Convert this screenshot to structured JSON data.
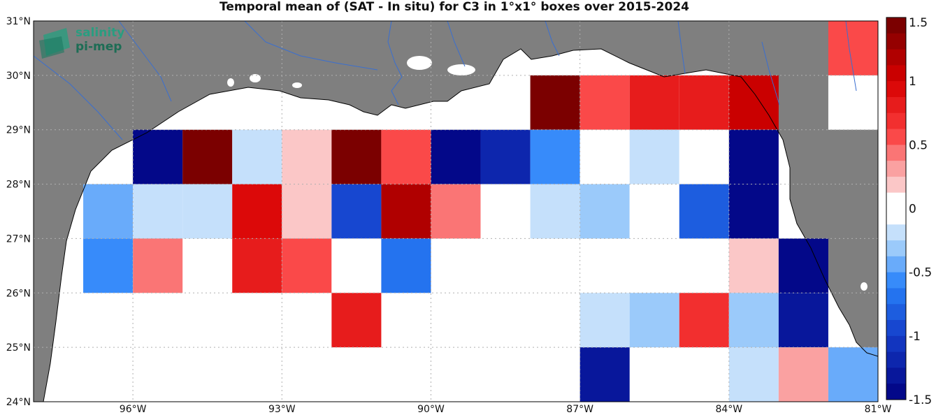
{
  "title": "Temporal mean of (SAT - In situ) for C3 in 1°x1° boxes over 2015-2024",
  "logo": {
    "line1": "salinity",
    "line2": "pi-mep",
    "color": "#2a9d80"
  },
  "colors": {
    "land": "#7f7f7f",
    "coast": "#000000",
    "river": "#3a6fd0"
  },
  "chart_data": {
    "type": "heatmap",
    "title": "Temporal mean of (SAT - In situ) for C3 in 1°x1° boxes over 2015-2024",
    "x_ticks": [
      "96°W",
      "93°W",
      "90°W",
      "87°W",
      "84°W",
      "81°W"
    ],
    "y_ticks": [
      "24°N",
      "25°N",
      "26°N",
      "27°N",
      "28°N",
      "29°N",
      "30°N",
      "31°N"
    ],
    "xlim": [
      -98,
      -81
    ],
    "ylim": [
      24,
      31
    ],
    "colorbar": {
      "min": -1.5,
      "max": 1.5,
      "ticks": [
        "1.5",
        "1",
        "0.5",
        "0",
        "-0.5",
        "-1",
        "-1.5"
      ]
    },
    "cells": [
      {
        "lon": -81.5,
        "lat": 30.5,
        "value": 0.55
      },
      {
        "lon": -81.5,
        "lat": 29.5,
        "value": 0.0
      },
      {
        "lon": -87.5,
        "lat": 29.5,
        "value": 1.4
      },
      {
        "lon": -86.5,
        "lat": 29.5,
        "value": 0.6
      },
      {
        "lon": -85.5,
        "lat": 29.5,
        "value": 0.75
      },
      {
        "lon": -84.5,
        "lat": 29.5,
        "value": 0.75
      },
      {
        "lon": -83.5,
        "lat": 29.5,
        "value": 1.1
      },
      {
        "lon": -95.5,
        "lat": 28.5,
        "value": -1.5
      },
      {
        "lon": -94.5,
        "lat": 28.5,
        "value": 1.45
      },
      {
        "lon": -93.5,
        "lat": 28.5,
        "value": -0.15
      },
      {
        "lon": -92.5,
        "lat": 28.5,
        "value": 0.15
      },
      {
        "lon": -91.5,
        "lat": 28.5,
        "value": 1.4
      },
      {
        "lon": -90.5,
        "lat": 28.5,
        "value": 0.55
      },
      {
        "lon": -89.5,
        "lat": 28.5,
        "value": -1.5
      },
      {
        "lon": -88.5,
        "lat": 28.5,
        "value": -1.2
      },
      {
        "lon": -87.5,
        "lat": 28.5,
        "value": -0.55
      },
      {
        "lon": -86.5,
        "lat": 28.5,
        "value": 0.0
      },
      {
        "lon": -85.5,
        "lat": 28.5,
        "value": -0.15
      },
      {
        "lon": -84.5,
        "lat": 28.5,
        "value": 0.0
      },
      {
        "lon": -83.5,
        "lat": 28.5,
        "value": -1.5
      },
      {
        "lon": -96.5,
        "lat": 27.5,
        "value": -0.5
      },
      {
        "lon": -95.5,
        "lat": 27.5,
        "value": -0.25
      },
      {
        "lon": -94.5,
        "lat": 27.5,
        "value": -0.25
      },
      {
        "lon": -93.5,
        "lat": 27.5,
        "value": 0.9
      },
      {
        "lon": -92.5,
        "lat": 27.5,
        "value": 0.15
      },
      {
        "lon": -91.5,
        "lat": 27.5,
        "value": -1.0
      },
      {
        "lon": -90.5,
        "lat": 27.5,
        "value": 1.2
      },
      {
        "lon": -89.5,
        "lat": 27.5,
        "value": 0.4
      },
      {
        "lon": -88.5,
        "lat": 27.5,
        "value": 0.0
      },
      {
        "lon": -87.5,
        "lat": 27.5,
        "value": -0.15
      },
      {
        "lon": -86.5,
        "lat": 27.5,
        "value": -0.35
      },
      {
        "lon": -85.5,
        "lat": 27.5,
        "value": 0.0
      },
      {
        "lon": -84.5,
        "lat": 27.5,
        "value": -0.85
      },
      {
        "lon": -83.5,
        "lat": 27.5,
        "value": -1.5
      },
      {
        "lon": -96.5,
        "lat": 26.5,
        "value": -0.55
      },
      {
        "lon": -95.5,
        "lat": 26.5,
        "value": 0.4
      },
      {
        "lon": -93.5,
        "lat": 26.5,
        "value": 0.75
      },
      {
        "lon": -92.5,
        "lat": 26.5,
        "value": 0.55
      },
      {
        "lon": -91.5,
        "lat": 26.5,
        "value": 0.0
      },
      {
        "lon": -90.5,
        "lat": 26.5,
        "value": -0.7
      },
      {
        "lon": -83.5,
        "lat": 26.5,
        "value": 0.15
      },
      {
        "lon": -82.5,
        "lat": 26.5,
        "value": -1.5
      },
      {
        "lon": -91.5,
        "lat": 25.5,
        "value": 0.8
      },
      {
        "lon": -86.5,
        "lat": 25.5,
        "value": -0.15
      },
      {
        "lon": -85.5,
        "lat": 25.5,
        "value": -0.3
      },
      {
        "lon": -84.5,
        "lat": 25.5,
        "value": 0.65
      },
      {
        "lon": -83.5,
        "lat": 25.5,
        "value": -0.3
      },
      {
        "lon": -82.5,
        "lat": 25.5,
        "value": -1.3
      },
      {
        "lon": -86.5,
        "lat": 24.5,
        "value": -1.3
      },
      {
        "lon": -83.5,
        "lat": 24.5,
        "value": -0.15
      },
      {
        "lon": -82.5,
        "lat": 24.5,
        "value": 0.3
      },
      {
        "lon": -81.5,
        "lat": 24.5,
        "value": -0.45
      }
    ]
  }
}
